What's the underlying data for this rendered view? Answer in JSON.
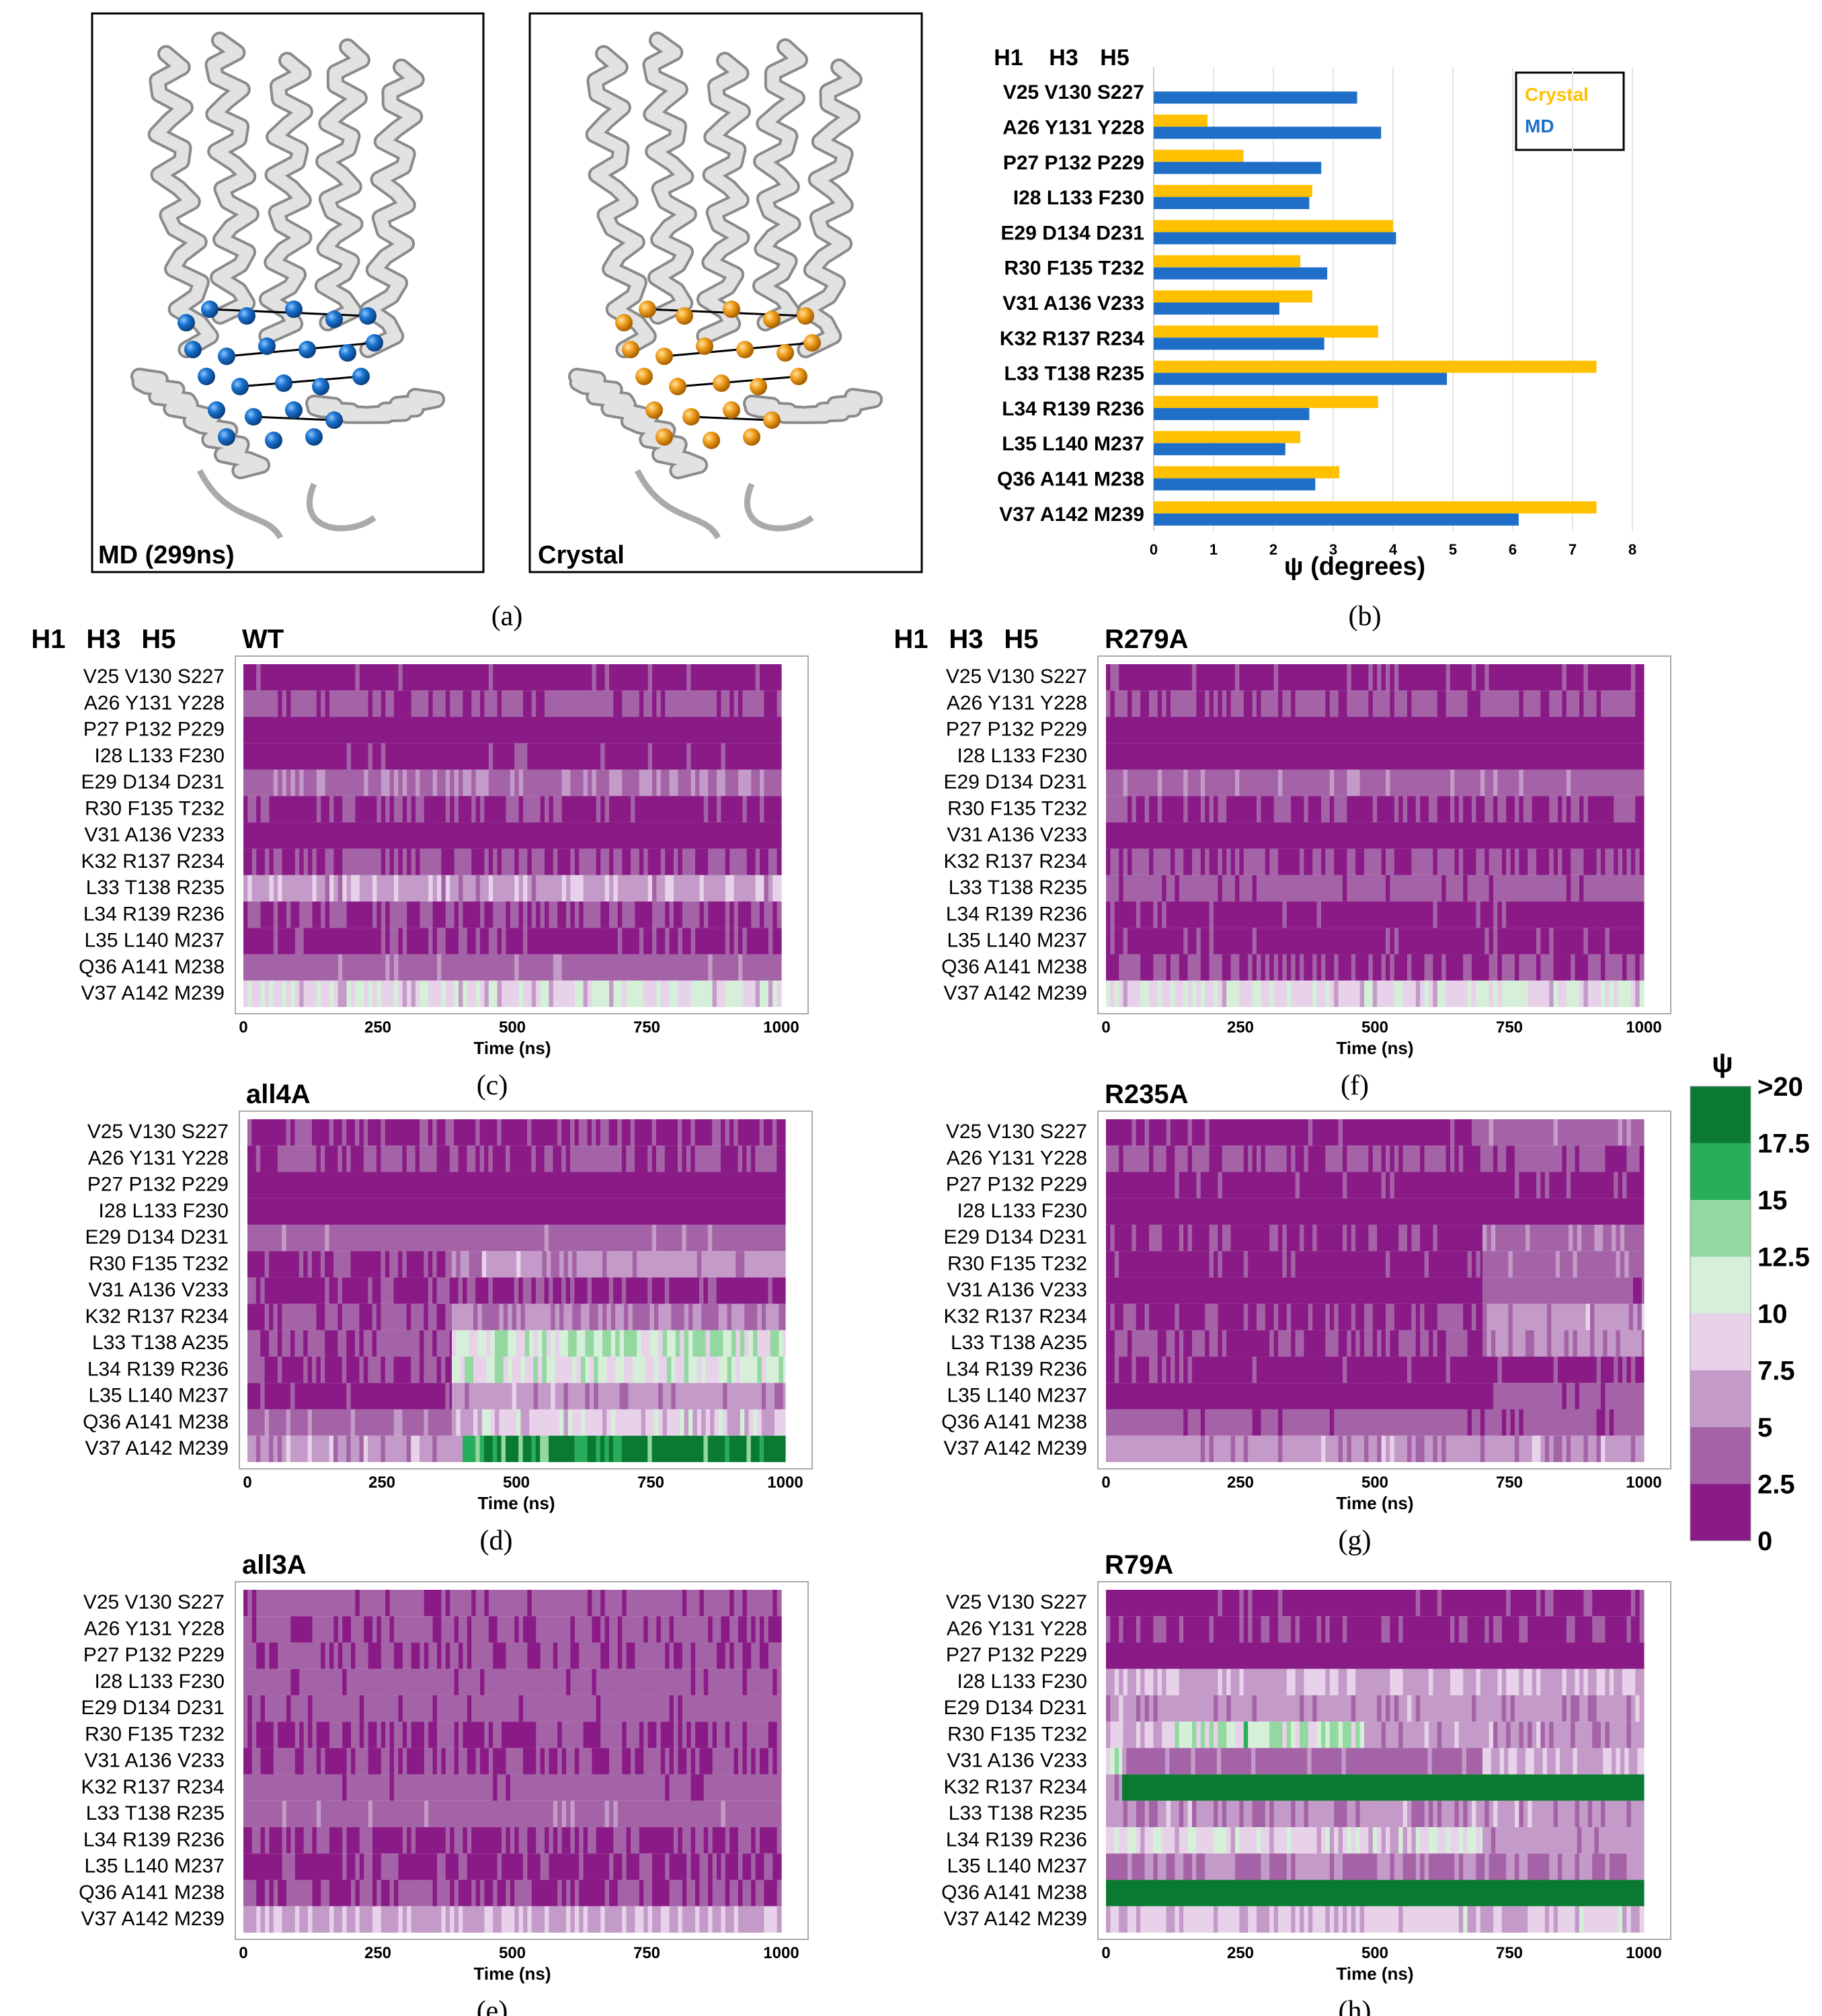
{
  "chart_data": [
    {
      "type": "image",
      "panel": "(a)",
      "images": [
        {
          "caption": "MD (299ns)",
          "sphere_color": "#1a73d0"
        },
        {
          "caption": "Crystal",
          "sphere_color": "#f0a020"
        }
      ]
    },
    {
      "type": "bar",
      "panel": "(b)",
      "orientation": "horizontal",
      "helix_headers": [
        "H1",
        "H3",
        "H5"
      ],
      "categories": [
        "V25 V130 S227",
        "A26 Y131 Y228",
        "P27 P132 P229",
        "I28 L133 F230",
        "E29 D134 D231",
        "R30 F135 T232",
        "V31 A136 V233",
        "K32 R137 R234",
        "L33 T138 R235",
        "L34 R139 R236",
        "L35 L140 M237",
        "Q36 A141 M238",
        "V37 A142 M239"
      ],
      "series": [
        {
          "name": "Crystal",
          "color": "#ffc000",
          "values": [
            0.0,
            0.9,
            1.5,
            2.65,
            4.0,
            2.45,
            2.65,
            3.75,
            7.4,
            3.75,
            2.45,
            3.1,
            7.4
          ]
        },
        {
          "name": "MD",
          "color": "#1f6fc8",
          "values": [
            3.4,
            3.8,
            2.8,
            2.6,
            4.05,
            2.9,
            2.1,
            2.85,
            4.9,
            2.6,
            2.2,
            2.7,
            6.1
          ]
        }
      ],
      "xlabel": "ψ (degrees)",
      "xlim": [
        0,
        8
      ],
      "xticks": [
        "0",
        "1",
        "2",
        "3",
        "4",
        "5",
        "6",
        "7",
        "8"
      ]
    },
    {
      "type": "heatmap",
      "colorbar": {
        "title": "ψ",
        "bins": [
          {
            "label": "0",
            "color": "#8a1a86"
          },
          {
            "label": "2.5",
            "color": "#a463a7"
          },
          {
            "label": "5",
            "color": "#c49ac8"
          },
          {
            "label": "7.5",
            "color": "#e8d2ea"
          },
          {
            "label": "10",
            "color": "#d5efd9"
          },
          {
            "label": "12.5",
            "color": "#93d7a1"
          },
          {
            "label": "15",
            "color": "#28ad5a"
          },
          {
            "label": "17.5",
            "color": "#0a7a32"
          },
          {
            "label": ">20",
            "color": ""
          }
        ]
      },
      "xlabel": "Time (ns)",
      "xlim": [
        0,
        1000
      ],
      "xticks": [
        "0",
        "250",
        "500",
        "750",
        "1000"
      ],
      "helix_headers": [
        "H1",
        "H3",
        "H5"
      ],
      "panels": [
        {
          "panel": "(c)",
          "title": "WT",
          "rows": [
            "V25 V130 S227",
            "A26 Y131 Y228",
            "P27 P132 P229",
            "I28  L133 F230",
            "E29 D134 D231",
            "R30 F135 T232",
            "V31 A136 V233",
            "K32 R137 R234",
            "L33 T138 R235",
            "L34 R139 R236",
            "L35 L140 M237",
            "Q36 A141 M238",
            "V37 A142 M239"
          ],
          "segments": [
            [
              [
                0,
                1000,
                1.5
              ]
            ],
            [
              [
                0,
                1000,
                3
              ]
            ],
            [
              [
                0,
                1000,
                1.2
              ]
            ],
            [
              [
                0,
                1000,
                1.5
              ]
            ],
            [
              [
                0,
                1000,
                4.5
              ]
            ],
            [
              [
                0,
                1000,
                2
              ]
            ],
            [
              [
                0,
                1000,
                1
              ]
            ],
            [
              [
                0,
                1000,
                2.5
              ]
            ],
            [
              [
                0,
                1000,
                6.5
              ]
            ],
            [
              [
                0,
                1000,
                2.5
              ]
            ],
            [
              [
                0,
                1000,
                1.8
              ]
            ],
            [
              [
                0,
                1000,
                4
              ]
            ],
            [
              [
                0,
                1000,
                9.5
              ]
            ]
          ]
        },
        {
          "panel": "(f)",
          "title": "R279A",
          "rows": [
            "V25 V130 S227",
            "A26 Y131 Y228",
            "P27 P132 P229",
            "I28  L133 F230",
            "E29 D134 D231",
            "R30 F135 T232",
            "V31 A136 V233",
            "K32 R137 R234",
            "L33 T138 R235",
            "L34 R139 R236",
            "L35 L140 M237",
            "Q36 A141 M238",
            "V37 A142 M239"
          ],
          "segments": [
            [
              [
                0,
                1000,
                1.5
              ]
            ],
            [
              [
                0,
                1000,
                3
              ]
            ],
            [
              [
                0,
                1000,
                1.2
              ]
            ],
            [
              [
                0,
                1000,
                1
              ]
            ],
            [
              [
                0,
                1000,
                4
              ]
            ],
            [
              [
                0,
                1000,
                2
              ]
            ],
            [
              [
                0,
                1000,
                1.2
              ]
            ],
            [
              [
                0,
                1000,
                2.5
              ]
            ],
            [
              [
                0,
                1000,
                3.5
              ]
            ],
            [
              [
                0,
                1000,
                1.5
              ]
            ],
            [
              [
                0,
                1000,
                1.5
              ]
            ],
            [
              [
                0,
                1000,
                2.5
              ]
            ],
            [
              [
                0,
                1000,
                9.5
              ]
            ]
          ]
        },
        {
          "panel": "(d)",
          "title": "all4A",
          "rows": [
            "V25 V130 S227",
            "A26 Y131 Y228",
            "P27 P132 P229",
            "I28  L133 F230",
            "E29 D134 D231",
            "R30 F135 T232",
            "V31 A136 V233",
            "K32 R137 R234",
            "L33 T138 A235",
            "L34 R139 R236",
            "L35 L140 M237",
            "Q36 A141 M238",
            "V37 A142 M239"
          ],
          "segments": [
            [
              [
                0,
                1000,
                2
              ]
            ],
            [
              [
                0,
                1000,
                2.5
              ]
            ],
            [
              [
                0,
                1000,
                1.2
              ]
            ],
            [
              [
                0,
                1000,
                1
              ]
            ],
            [
              [
                0,
                1000,
                4
              ]
            ],
            [
              [
                0,
                380,
                2
              ],
              [
                380,
                1000,
                6
              ]
            ],
            [
              [
                0,
                1000,
                2
              ]
            ],
            [
              [
                0,
                380,
                3
              ],
              [
                380,
                1000,
                5
              ]
            ],
            [
              [
                0,
                380,
                3
              ],
              [
                380,
                1000,
                12
              ]
            ],
            [
              [
                0,
                380,
                2.5
              ],
              [
                380,
                1000,
                10.5
              ]
            ],
            [
              [
                0,
                380,
                1.5
              ],
              [
                380,
                1000,
                6
              ]
            ],
            [
              [
                0,
                380,
                4
              ],
              [
                380,
                1000,
                8.5
              ]
            ],
            [
              [
                0,
                400,
                6
              ],
              [
                400,
                1000,
                19
              ]
            ]
          ]
        },
        {
          "panel": "(g)",
          "title": "R235A",
          "rows": [
            "V25 V130 S227",
            "A26 Y131 Y228",
            "P27 P132 P229",
            "I28  L133 F230",
            "E29 D134 D231",
            "R30 F135 T232",
            "V31 A136 V233",
            "K32 R137 R234",
            "L33 T138 A235",
            "L34 R139 R236",
            "L35 L140 M237",
            "Q36 A141 M238",
            "V37 A142 M239"
          ],
          "segments": [
            [
              [
                0,
                680,
                1.5
              ],
              [
                680,
                1000,
                4
              ]
            ],
            [
              [
                0,
                1000,
                3
              ]
            ],
            [
              [
                0,
                1000,
                1.5
              ]
            ],
            [
              [
                0,
                1000,
                1
              ]
            ],
            [
              [
                0,
                700,
                2
              ],
              [
                700,
                1000,
                4.5
              ]
            ],
            [
              [
                0,
                700,
                1.5
              ],
              [
                700,
                1000,
                4
              ]
            ],
            [
              [
                0,
                700,
                1
              ],
              [
                700,
                1000,
                3.5
              ]
            ],
            [
              [
                0,
                700,
                2
              ],
              [
                700,
                1000,
                6
              ]
            ],
            [
              [
                0,
                700,
                2.5
              ],
              [
                700,
                1000,
                6
              ]
            ],
            [
              [
                0,
                1000,
                1.5
              ]
            ],
            [
              [
                0,
                720,
                1
              ],
              [
                720,
                1000,
                3.5
              ]
            ],
            [
              [
                0,
                1000,
                3.5
              ]
            ],
            [
              [
                0,
                1000,
                6
              ]
            ]
          ]
        },
        {
          "panel": "(e)",
          "title": "all3A",
          "rows": [
            "V25 V130 S227",
            "A26 Y131 Y228",
            "P27 P132 P229",
            "I28  L133 F230",
            "E29 D134 D231",
            "R30 F135 T232",
            "V31 A136 V233",
            "K32 R137 R234",
            "L33 T138 R235",
            "L34 R139 R236",
            "L35 L140 M237",
            "Q36 A141 M238",
            "V37 A142 M239"
          ],
          "segments": [
            [
              [
                0,
                1000,
                3.5
              ]
            ],
            [
              [
                0,
                1000,
                3
              ]
            ],
            [
              [
                0,
                1000,
                3
              ]
            ],
            [
              [
                0,
                1000,
                3.5
              ]
            ],
            [
              [
                0,
                1000,
                3.5
              ]
            ],
            [
              [
                0,
                1000,
                2.5
              ]
            ],
            [
              [
                0,
                1000,
                2.5
              ]
            ],
            [
              [
                0,
                1000,
                3.5
              ]
            ],
            [
              [
                0,
                1000,
                4
              ]
            ],
            [
              [
                0,
                1000,
                2
              ]
            ],
            [
              [
                0,
                1000,
                2
              ]
            ],
            [
              [
                0,
                1000,
                2.5
              ]
            ],
            [
              [
                0,
                1000,
                7
              ]
            ]
          ]
        },
        {
          "panel": "(h)",
          "title": "R79A",
          "rows": [
            "V25 V130 S227",
            "A26 Y131 Y228",
            "P27 P132 P229",
            "I28  L133 F230",
            "E29 D134 D231",
            "R30 F135 T232",
            "V31 A136 V233",
            "K32 R137 R234",
            "L33 T138 R235",
            "L34 R139 R236",
            "L35 L140 M237",
            "Q36 A141 M238",
            "V37 A142 M239"
          ],
          "segments": [
            [
              [
                0,
                1000,
                1.5
              ]
            ],
            [
              [
                0,
                1000,
                2
              ]
            ],
            [
              [
                0,
                1000,
                1.2
              ]
            ],
            [
              [
                0,
                1000,
                7
              ]
            ],
            [
              [
                0,
                1000,
                6
              ]
            ],
            [
              [
                0,
                120,
                7
              ],
              [
                120,
                480,
                12
              ],
              [
                480,
                1000,
                6
              ]
            ],
            [
              [
                0,
                30,
                10
              ],
              [
                30,
                700,
                4
              ],
              [
                700,
                1000,
                7
              ]
            ],
            [
              [
                0,
                30,
                6
              ],
              [
                30,
                1000,
                22
              ]
            ],
            [
              [
                0,
                1000,
                6
              ]
            ],
            [
              [
                0,
                700,
                9
              ],
              [
                700,
                1000,
                6
              ]
            ],
            [
              [
                0,
                1000,
                5
              ]
            ],
            [
              [
                0,
                1000,
                22
              ]
            ],
            [
              [
                0,
                1000,
                8
              ]
            ]
          ]
        }
      ]
    }
  ]
}
